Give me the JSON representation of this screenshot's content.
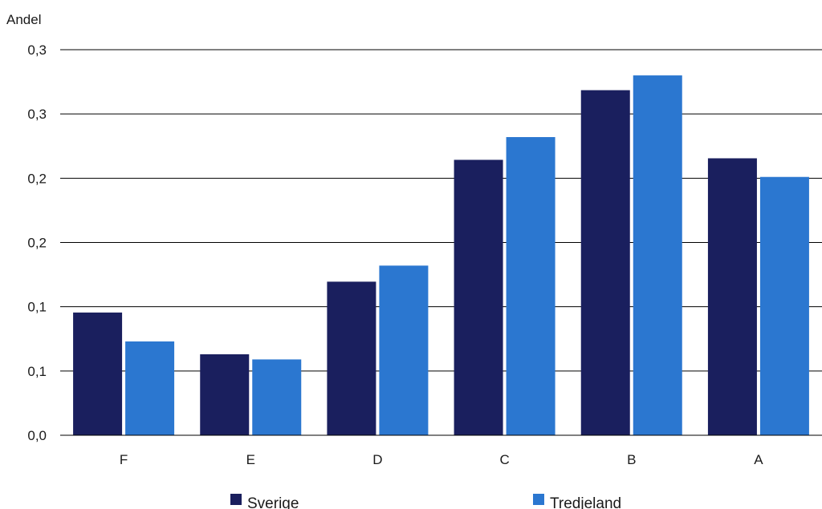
{
  "chart_data": {
    "type": "bar",
    "title": "",
    "xlabel": "",
    "ylabel": "Andel",
    "categories": [
      "F",
      "E",
      "D",
      "C",
      "B",
      "A"
    ],
    "series": [
      {
        "name": "Sverige",
        "color": "#1a1f5e",
        "values": [
          0.0955,
          0.063,
          0.1195,
          0.2143,
          0.2685,
          0.2155
        ]
      },
      {
        "name": "Tredjeland",
        "color": "#2b77d0",
        "values": [
          0.073,
          0.059,
          0.132,
          0.232,
          0.28,
          0.201
        ]
      }
    ],
    "ylim": [
      0,
      0.3
    ],
    "yticks": [
      0,
      0.05,
      0.1,
      0.15,
      0.2,
      0.25,
      0.3
    ],
    "ytick_labels": [
      "0,0",
      "0,1",
      "0,1",
      "0,2",
      "0,2",
      "0,3",
      "0,3"
    ],
    "grid": true,
    "legend_position": "bottom"
  }
}
